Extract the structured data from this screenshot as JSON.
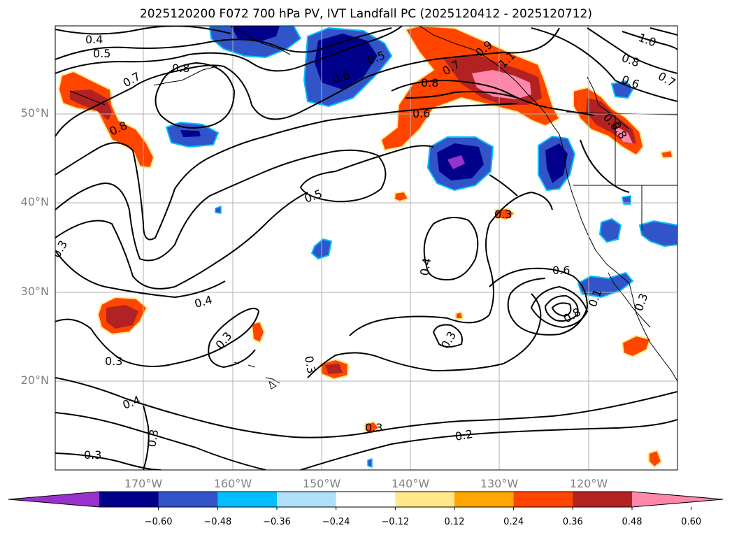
{
  "title": "2025120200 F072 700 hPa PV, IVT Landfall PC (2025120412 - 2025120712)",
  "lat_labels": [
    "50°N",
    "40°N",
    "30°N",
    "20°N"
  ],
  "lon_labels": [
    "170°W",
    "160°W",
    "150°W",
    "140°W",
    "130°W",
    "120°W"
  ],
  "colorbar": {
    "ticks": [
      "−0.60",
      "−0.48",
      "−0.36",
      "−0.24",
      "−0.12",
      "0.12",
      "0.24",
      "0.36",
      "0.48",
      "0.60"
    ],
    "bins": [
      {
        "color": "#9932cc"
      },
      {
        "color": "#00008b"
      },
      {
        "color": "#3155c8"
      },
      {
        "color": "#00bfff"
      },
      {
        "color": "#afe0f8"
      },
      {
        "color": "#ffffff"
      },
      {
        "color": "#ffe98a"
      },
      {
        "color": "#ffa500"
      },
      {
        "color": "#ff4500"
      },
      {
        "color": "#b22222"
      },
      {
        "color": "#ff88aa"
      }
    ]
  },
  "contour_labels": [
    "0.4",
    "0.5",
    "0.7",
    "0.8",
    "0.8",
    "0.5",
    "0.6",
    "0.8",
    "0.7",
    "0.6",
    "0.9",
    "1.1",
    "1.0",
    "0.8",
    "0.6",
    "0.7",
    "0.6",
    "0.8",
    "0.5",
    "0.3",
    "0.4",
    "0.4",
    "0.3",
    "0.3",
    "0.3",
    "0.3",
    "0.4",
    "0.3",
    "0.3",
    "0.3",
    "0.3",
    "0.6",
    "0.8",
    "0.1",
    "0.2",
    "0.3"
  ]
}
